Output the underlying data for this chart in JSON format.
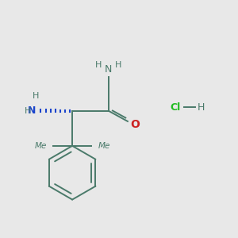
{
  "bg_color": "#e8e8e8",
  "bond_color": "#4a7a6a",
  "N_color": "#1a44cc",
  "O_color": "#cc2222",
  "Cl_color": "#22bb22",
  "H_color": "#4a7a6a",
  "figsize": [
    3.0,
    3.0
  ],
  "dpi": 100,
  "xlim": [
    0,
    10
  ],
  "ylim": [
    0,
    10
  ],
  "bond_lw": 1.4,
  "font_size_atom": 9,
  "font_size_H": 8
}
